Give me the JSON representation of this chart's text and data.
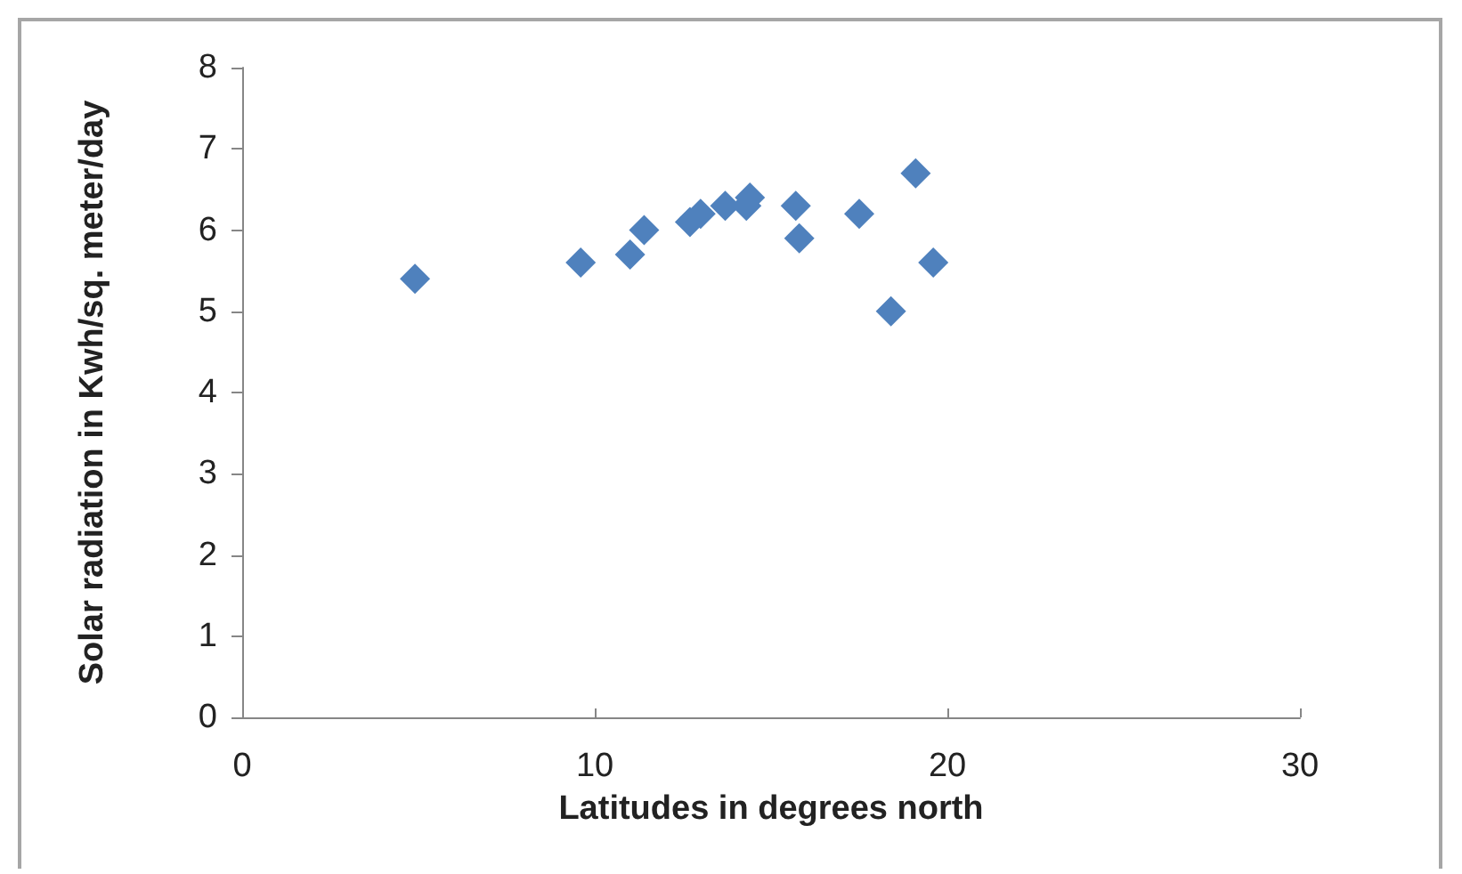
{
  "chart_data": {
    "type": "scatter",
    "xlabel": "Latitudes in degrees north",
    "ylabel": "Solar radiation in Kwh/sq. meter/day",
    "x": [
      4.9,
      9.6,
      11.0,
      11.4,
      12.7,
      13.0,
      13.7,
      14.3,
      14.4,
      15.7,
      15.8,
      17.5,
      18.4,
      19.1,
      19.6
    ],
    "series": [
      {
        "color": "#4f81bd",
        "values": [
          5.4,
          5.6,
          5.7,
          6.0,
          6.1,
          6.2,
          6.3,
          6.3,
          6.4,
          6.3,
          5.9,
          6.2,
          5.0,
          6.7,
          5.6
        ]
      }
    ],
    "xlim": [
      0,
      30
    ],
    "xticks": [
      0,
      10,
      20,
      30
    ],
    "ylim": [
      0,
      8
    ],
    "yticks": [
      0,
      1,
      2,
      3,
      4,
      5,
      6,
      7,
      8
    ],
    "marker": "diamond",
    "grid": false
  }
}
